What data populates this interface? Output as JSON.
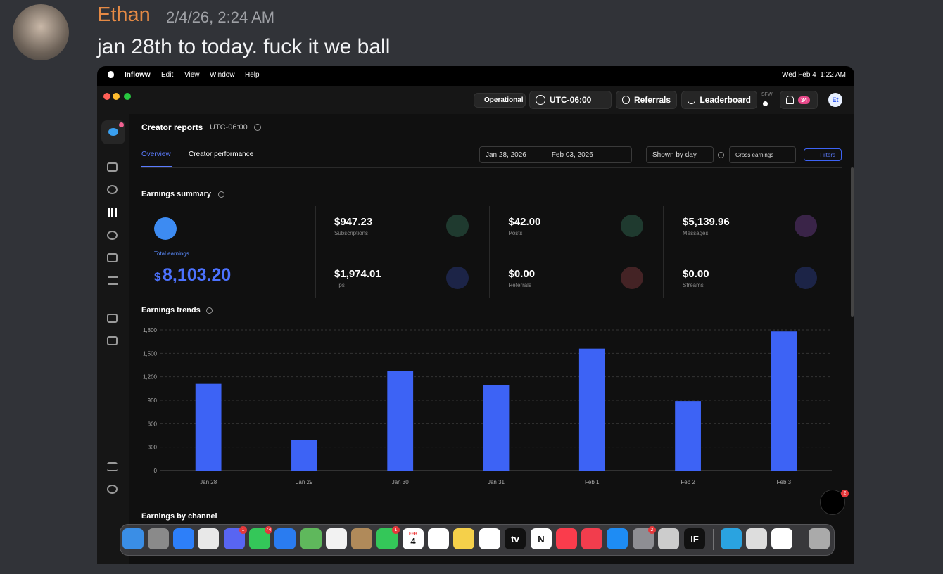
{
  "message": {
    "author": "Ethan",
    "timestamp": "2/4/26, 2:24 AM",
    "text": "jan 28th to today.  fuck it we ball"
  },
  "menubar": {
    "app": "Infloww",
    "items": [
      "Edit",
      "View",
      "Window",
      "Help"
    ],
    "clock": "Wed Feb 4  1:22 AM"
  },
  "toolbar": {
    "status": "Operational",
    "timezone": "UTC-06:00",
    "referrals": "Referrals",
    "leaderboard": "Leaderboard",
    "sfw": "SFW",
    "notifications": "34",
    "avatar": "Et"
  },
  "page": {
    "title": "Creator reports",
    "timezone": "UTC-06:00",
    "tabs": [
      "Overview",
      "Creator performance"
    ],
    "date_from": "Jan 28, 2026",
    "date_to": "Feb 03, 2026",
    "grouping": "Shown by day",
    "metric": "Gross earnings",
    "filters": "Filters",
    "next_section": "Earnings by channel",
    "support_badge": "2"
  },
  "summary": {
    "title": "Earnings summary",
    "total_label": "Total earnings",
    "total_currency": "$",
    "total": "8,103.20",
    "items": [
      {
        "value": "$947.23",
        "label": "Subscriptions",
        "color": "#1f3a2f"
      },
      {
        "value": "$42.00",
        "label": "Posts",
        "color": "#1f3a2f"
      },
      {
        "value": "$5,139.96",
        "label": "Messages",
        "color": "#3a2448"
      },
      {
        "value": "$1,974.01",
        "label": "Tips",
        "color": "#1c2447"
      },
      {
        "value": "$0.00",
        "label": "Referrals",
        "color": "#442325"
      },
      {
        "value": "$0.00",
        "label": "Streams",
        "color": "#1c2447"
      }
    ]
  },
  "chart_data": {
    "type": "bar",
    "title": "Earnings trends",
    "categories": [
      "Jan 28",
      "Jan 29",
      "Jan 30",
      "Jan 31",
      "Feb 1",
      "Feb 2",
      "Feb 3"
    ],
    "values": [
      1110,
      390,
      1270,
      1090,
      1560,
      890,
      1780
    ],
    "color": "#3d63f5",
    "ylim": [
      0,
      1800
    ],
    "yticks": [
      0,
      300,
      600,
      900,
      {
        "value": 1200,
        "label": "1,200"
      },
      {
        "value": 1500,
        "label": "1,500"
      },
      {
        "value": 1800,
        "label": "1,800"
      }
    ],
    "grid": true
  },
  "dock": [
    {
      "color": "#3a8ee6"
    },
    {
      "color": "#8a8a8a"
    },
    {
      "color": "#2d7ff9"
    },
    {
      "color": "#e8e8e8"
    },
    {
      "color": "#5865f2",
      "badge": "1"
    },
    {
      "color": "#34c759",
      "badge": "74"
    },
    {
      "color": "#2a7cf0"
    },
    {
      "color": "#5fb85c"
    },
    {
      "color": "#f2f2f2"
    },
    {
      "color": "#b08a5a"
    },
    {
      "color": "#34c759",
      "badge": "1"
    },
    {
      "color": "#ffffff",
      "labels": [
        "FEB",
        "4"
      ]
    },
    {
      "color": "#ffffff"
    },
    {
      "color": "#f5d04a"
    },
    {
      "color": "#ffffff"
    },
    {
      "color": "#111111",
      "labels": [
        "tv"
      ]
    },
    {
      "color": "#ffffff",
      "labels": [
        "N"
      ]
    },
    {
      "color": "#fa3c4c"
    },
    {
      "color": "#f23d4d"
    },
    {
      "color": "#1e8cf4"
    },
    {
      "color": "#8e8e93",
      "badge": "2"
    },
    {
      "color": "#cccccc"
    },
    {
      "color": "#111111",
      "labels": [
        "IF"
      ]
    },
    {
      "color": "#2aa3e0"
    },
    {
      "color": "#dddddd"
    },
    {
      "color": "#ffffff"
    },
    {
      "color": "#aaaaaa"
    }
  ]
}
